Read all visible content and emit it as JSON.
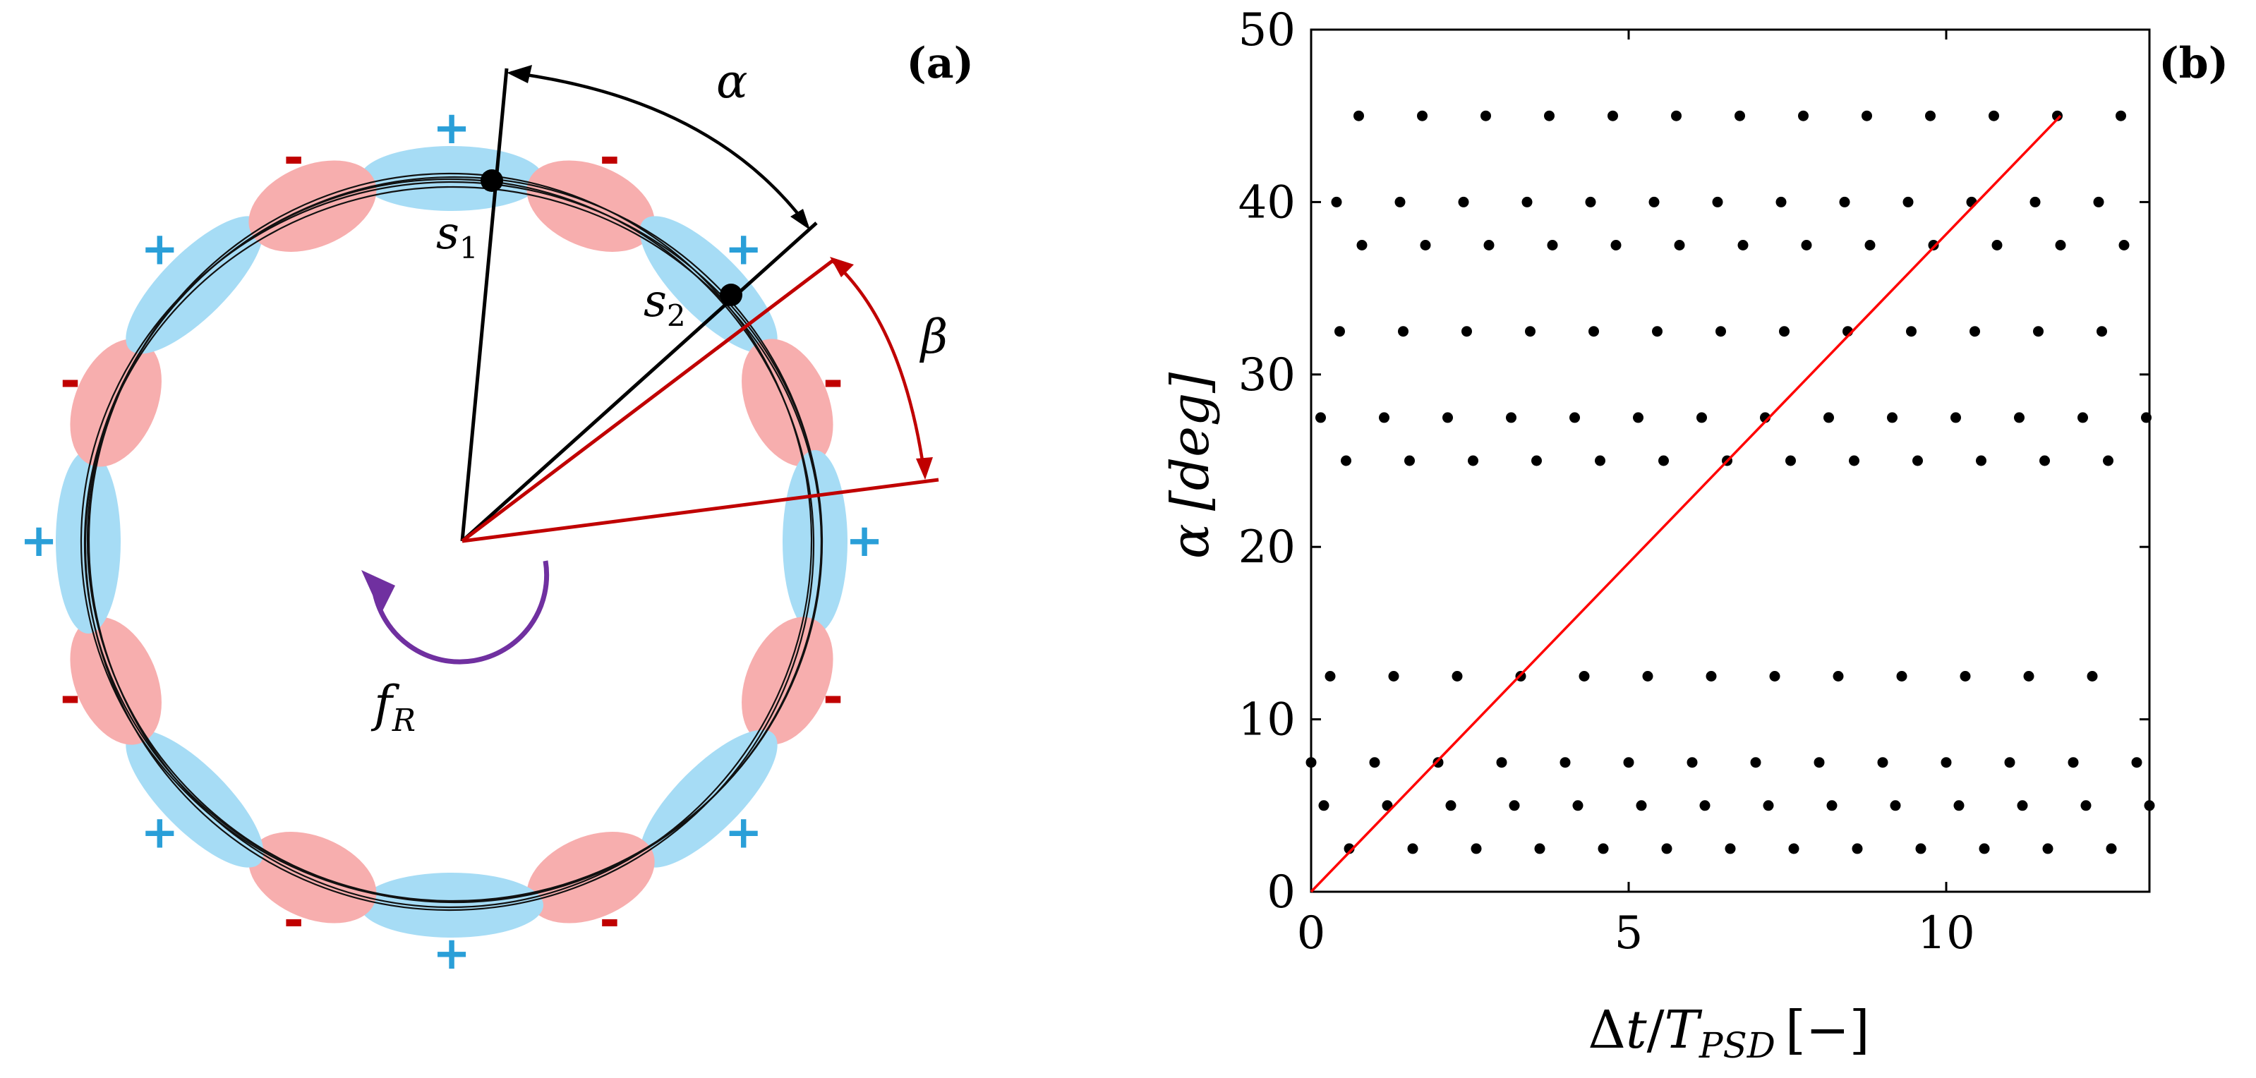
{
  "panel_a": {
    "label": "(a)",
    "plus": "+",
    "minus": "-",
    "lobes": {
      "count": 16,
      "sign_pattern": [
        "+",
        "-"
      ],
      "colors": {
        "positive": "#a6dcf5",
        "negative": "#f7aeae"
      },
      "mark_colors": {
        "positive": "#2a9fd8",
        "negative": "#c00000"
      }
    },
    "angles": {
      "alpha_sym": "α",
      "beta_sym": "β",
      "rotation_sym": "f",
      "rotation_sub": "R",
      "s1_sym": "s",
      "s1_sub": "1",
      "s2_sym": "s",
      "s2_sub": "2"
    },
    "colors": {
      "alpha": "#000000",
      "beta": "#c00000",
      "rotation": "#7030a0"
    }
  },
  "panel_b": {
    "label": "(b)",
    "chart_data": {
      "type": "scatter",
      "x_label_parts": {
        "delta": "Δ",
        "t": "t",
        "slash": "/",
        "T": "T",
        "sub": "PSD",
        "unit": "[−]"
      },
      "y_label_parts": {
        "sym": "α",
        "unit": "[deg]"
      },
      "xlim": [
        0,
        13.2
      ],
      "ylim": [
        0,
        50
      ],
      "x_ticks": [
        0,
        5,
        10
      ],
      "y_ticks": [
        0,
        10,
        20,
        30,
        40,
        50
      ],
      "grid": false,
      "rows": [
        {
          "y": 2.5,
          "x0": 0.6,
          "step": 1.0
        },
        {
          "y": 5.0,
          "x0": 0.2,
          "step": 1.0
        },
        {
          "y": 7.5,
          "x0": 0.0,
          "step": 1.0
        },
        {
          "y": 12.5,
          "x0": 0.3,
          "step": 1.0
        },
        {
          "y": 25.0,
          "x0": 0.55,
          "step": 1.0
        },
        {
          "y": 27.5,
          "x0": 0.15,
          "step": 1.0
        },
        {
          "y": 32.5,
          "x0": 0.45,
          "step": 1.0
        },
        {
          "y": 37.5,
          "x0": 0.8,
          "step": 1.0
        },
        {
          "y": 40.0,
          "x0": 0.4,
          "step": 1.0
        },
        {
          "y": 45.0,
          "x0": 0.75,
          "step": 1.0
        }
      ],
      "line": {
        "x": [
          0,
          11.8
        ],
        "y": [
          0,
          45
        ],
        "color": "#ff0000"
      },
      "marker_color": "#000000"
    }
  }
}
